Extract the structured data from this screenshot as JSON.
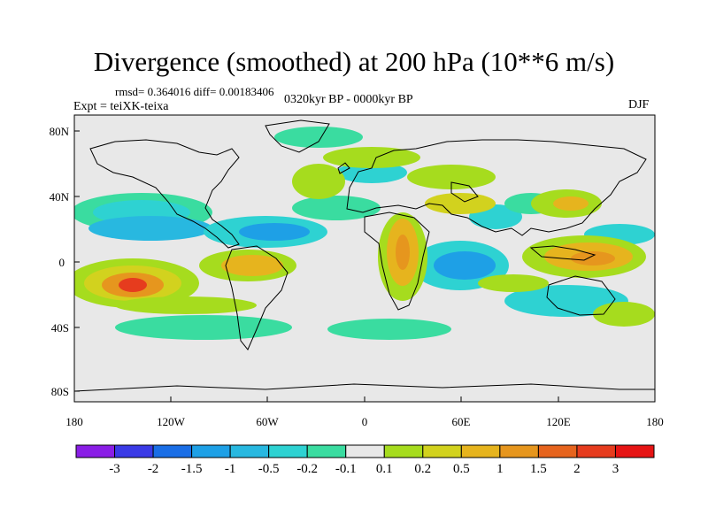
{
  "header": {
    "title": "Divergence (smoothed) at 200 hPa (10**6 m/s)",
    "stats": "rmsd= 0.364016 diff= 0.00183406",
    "experiment": "Expt = teiXK-teixa",
    "period": "0320kyr BP - 0000kyr BP",
    "season": "DJF"
  },
  "axes": {
    "lat_labels": [
      "80N",
      "40N",
      "0",
      "40S",
      "80S"
    ],
    "lon_labels": [
      "180",
      "120W",
      "60W",
      "0",
      "60E",
      "120E",
      "180"
    ]
  },
  "colorbar": {
    "labels": [
      "-3",
      "-2",
      "-1.5",
      "-1",
      "-0.5",
      "-0.2",
      "-0.1",
      "0.1",
      "0.2",
      "0.5",
      "1",
      "1.5",
      "2",
      "3"
    ],
    "colors": [
      "#8a1ee6",
      "#3a3ae6",
      "#1a6ee6",
      "#1ea0e6",
      "#28b8e0",
      "#2ed2d2",
      "#3adca0",
      "#e8e8e8",
      "#a6dc1e",
      "#d2d21e",
      "#e6b41e",
      "#e6961e",
      "#e6641e",
      "#e63c1e",
      "#e61414"
    ]
  },
  "map": {
    "ocean_color": "#e8e8e8",
    "coastline_color": "#000000"
  }
}
